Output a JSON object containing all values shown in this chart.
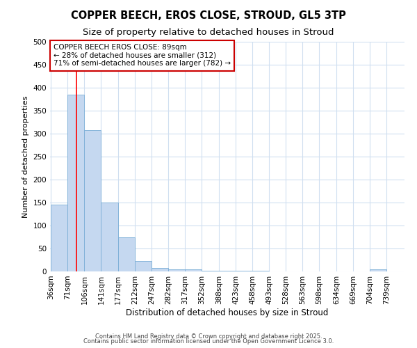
{
  "title1": "COPPER BEECH, EROS CLOSE, STROUD, GL5 3TP",
  "title2": "Size of property relative to detached houses in Stroud",
  "xlabel": "Distribution of detached houses by size in Stroud",
  "ylabel": "Number of detached properties",
  "bar_edges": [
    36,
    71,
    106,
    141,
    177,
    212,
    247,
    282,
    317,
    352,
    388,
    423,
    458,
    493,
    528,
    563,
    598,
    634,
    669,
    704,
    739
  ],
  "bar_heights": [
    145,
    385,
    308,
    150,
    75,
    22,
    8,
    5,
    5,
    2,
    2,
    1,
    2,
    0,
    0,
    0,
    0,
    0,
    0,
    5
  ],
  "bar_color": "#c5d8f0",
  "bar_edge_color": "#7aaed6",
  "red_line_x": 89,
  "annotation_line1": "COPPER BEECH EROS CLOSE: 89sqm",
  "annotation_line2": "← 28% of detached houses are smaller (312)",
  "annotation_line3": "71% of semi-detached houses are larger (782) →",
  "annotation_box_color": "#cc0000",
  "ylim": [
    0,
    500
  ],
  "yticks": [
    0,
    50,
    100,
    150,
    200,
    250,
    300,
    350,
    400,
    450,
    500
  ],
  "footnote1": "Contains HM Land Registry data © Crown copyright and database right 2025.",
  "footnote2": "Contains public sector information licensed under the Open Government Licence 3.0.",
  "bg_color": "#ffffff",
  "grid_color": "#d0dff0",
  "title1_fontsize": 10.5,
  "title2_fontsize": 9.5,
  "xlabel_fontsize": 8.5,
  "ylabel_fontsize": 8,
  "tick_fontsize": 7.5,
  "annot_fontsize": 7.5,
  "footnote_fontsize": 6
}
